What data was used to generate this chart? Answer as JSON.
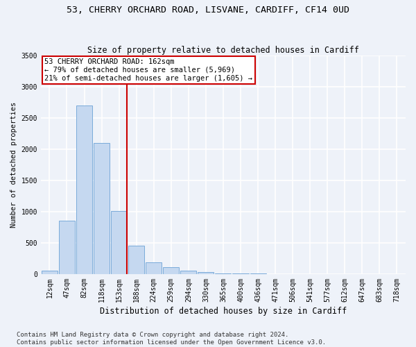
{
  "title1": "53, CHERRY ORCHARD ROAD, LISVANE, CARDIFF, CF14 0UD",
  "title2": "Size of property relative to detached houses in Cardiff",
  "xlabel": "Distribution of detached houses by size in Cardiff",
  "ylabel": "Number of detached properties",
  "categories": [
    "12sqm",
    "47sqm",
    "82sqm",
    "118sqm",
    "153sqm",
    "188sqm",
    "224sqm",
    "259sqm",
    "294sqm",
    "330sqm",
    "365sqm",
    "400sqm",
    "436sqm",
    "471sqm",
    "506sqm",
    "541sqm",
    "577sqm",
    "612sqm",
    "647sqm",
    "683sqm",
    "718sqm"
  ],
  "values": [
    60,
    850,
    2700,
    2100,
    1010,
    450,
    190,
    110,
    60,
    35,
    10,
    5,
    5,
    3,
    2,
    1,
    1,
    1,
    0,
    0,
    0
  ],
  "bar_color": "#c5d8f0",
  "bar_edgecolor": "#7aabda",
  "annotation_text": "53 CHERRY ORCHARD ROAD: 162sqm\n← 79% of detached houses are smaller (5,969)\n21% of semi-detached houses are larger (1,605) →",
  "annotation_box_color": "white",
  "annotation_box_edgecolor": "#cc0000",
  "vline_color": "#cc0000",
  "ylim": [
    0,
    3500
  ],
  "yticks": [
    0,
    500,
    1000,
    1500,
    2000,
    2500,
    3000,
    3500
  ],
  "footnote": "Contains HM Land Registry data © Crown copyright and database right 2024.\nContains public sector information licensed under the Open Government Licence v3.0.",
  "bg_color": "#eef2f9",
  "grid_color": "white",
  "title1_fontsize": 9.5,
  "title2_fontsize": 8.5,
  "xlabel_fontsize": 8.5,
  "ylabel_fontsize": 7.5,
  "tick_fontsize": 7,
  "annotation_fontsize": 7.5,
  "footnote_fontsize": 6.5
}
